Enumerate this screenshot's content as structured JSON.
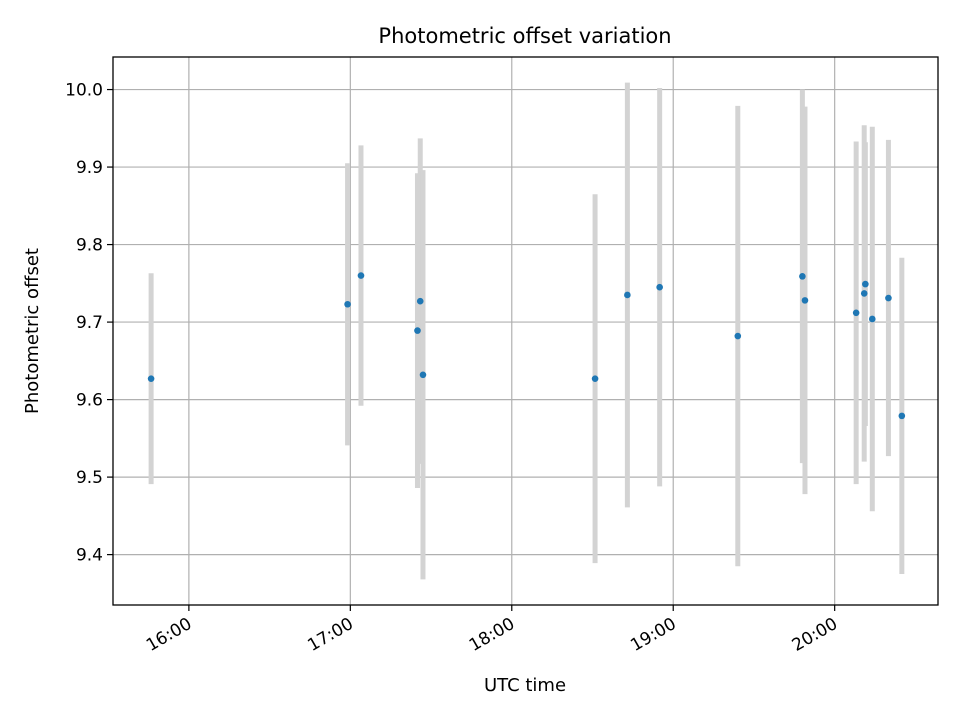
{
  "chart_data": {
    "type": "scatter",
    "title": "Photometric offset variation",
    "xlabel": "UTC time",
    "ylabel": "Photometric offset",
    "x_unit": "hours (UTC)",
    "xlim": [
      15.53,
      20.64
    ],
    "ylim": [
      9.335,
      10.042
    ],
    "x_ticks": [
      {
        "value": 16,
        "label": "16:00"
      },
      {
        "value": 17,
        "label": "17:00"
      },
      {
        "value": 18,
        "label": "18:00"
      },
      {
        "value": 19,
        "label": "19:00"
      },
      {
        "value": 20,
        "label": "20:00"
      }
    ],
    "y_ticks": [
      {
        "value": 9.4,
        "label": "9.4"
      },
      {
        "value": 9.5,
        "label": "9.5"
      },
      {
        "value": 9.6,
        "label": "9.6"
      },
      {
        "value": 9.7,
        "label": "9.7"
      },
      {
        "value": 9.8,
        "label": "9.8"
      },
      {
        "value": 9.9,
        "label": "9.9"
      },
      {
        "value": 10.0,
        "label": "10.0"
      }
    ],
    "grid": true,
    "colors": {
      "point": "#1f77b4",
      "errorbar": "#d3d3d3",
      "grid": "#b0b0b0"
    },
    "points": [
      {
        "x": 15.766,
        "y": 9.627,
        "err": 0.136
      },
      {
        "x": 16.983,
        "y": 9.723,
        "err": 0.182
      },
      {
        "x": 17.066,
        "y": 9.76,
        "err": 0.168
      },
      {
        "x": 17.416,
        "y": 9.689,
        "err": 0.203
      },
      {
        "x": 17.433,
        "y": 9.727,
        "err": 0.21
      },
      {
        "x": 17.45,
        "y": 9.632,
        "err": 0.264
      },
      {
        "x": 18.516,
        "y": 9.627,
        "err": 0.238
      },
      {
        "x": 18.716,
        "y": 9.735,
        "err": 0.274
      },
      {
        "x": 18.916,
        "y": 9.745,
        "err": 0.257
      },
      {
        "x": 19.4,
        "y": 9.682,
        "err": 0.297
      },
      {
        "x": 19.8,
        "y": 9.759,
        "err": 0.241
      },
      {
        "x": 19.816,
        "y": 9.728,
        "err": 0.25
      },
      {
        "x": 20.133,
        "y": 9.712,
        "err": 0.221
      },
      {
        "x": 20.183,
        "y": 9.737,
        "err": 0.217
      },
      {
        "x": 20.19,
        "y": 9.749,
        "err": 0.183
      },
      {
        "x": 20.233,
        "y": 9.704,
        "err": 0.248
      },
      {
        "x": 20.333,
        "y": 9.731,
        "err": 0.204
      },
      {
        "x": 20.416,
        "y": 9.579,
        "err": 0.204
      }
    ]
  }
}
